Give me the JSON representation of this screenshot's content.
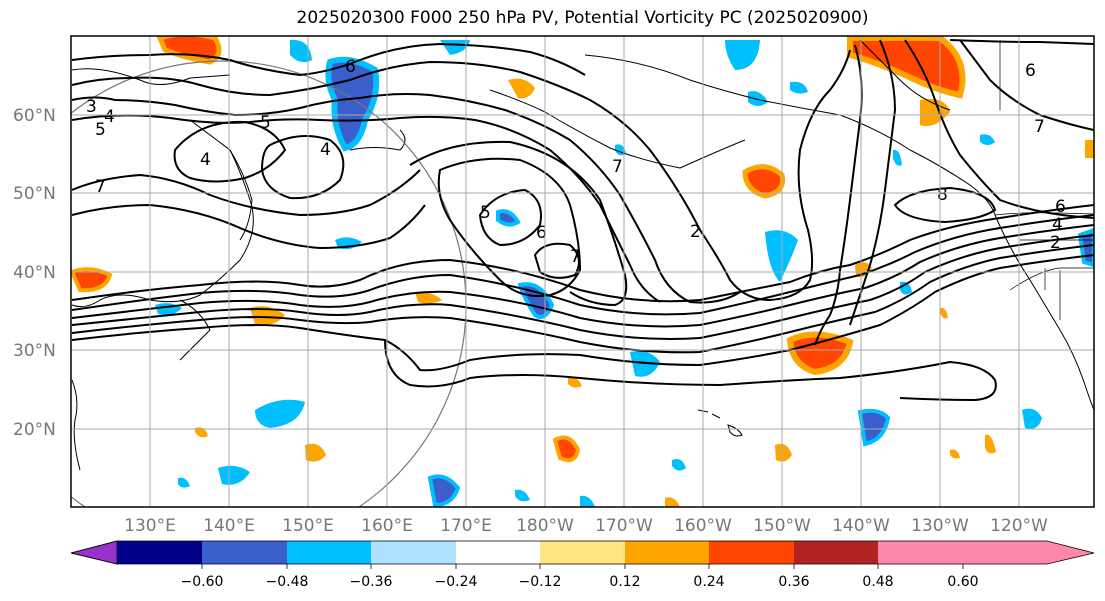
{
  "title": "2025020300 F000 250 hPa PV, Potential Vorticity PC (2025020900)",
  "map": {
    "lat_labels": [
      "60°N",
      "50°N",
      "40°N",
      "30°N",
      "20°N"
    ],
    "lon_labels": [
      "130°E",
      "140°E",
      "150°E",
      "160°E",
      "170°E",
      "180°W",
      "170°W",
      "160°W",
      "150°W",
      "140°W",
      "130°W",
      "120°W"
    ],
    "contour_labels": [
      "3",
      "4",
      "5",
      "7",
      "5",
      "4",
      "4",
      "5",
      "6",
      "7",
      "2",
      "6",
      "8",
      "7",
      "6",
      "4",
      "2",
      "6",
      "7"
    ]
  },
  "colorbar": {
    "tick_labels": [
      "−0.60",
      "−0.48",
      "−0.36",
      "−0.24",
      "−0.12",
      "0.12",
      "0.24",
      "0.36",
      "0.48",
      "0.60"
    ],
    "colors": [
      "#9932cc",
      "#00008b",
      "#3a5fcd",
      "#00bfff",
      "#b0e2ff",
      "#ffffff",
      "#ffe47f",
      "#ffa500",
      "#ff4500",
      "#b22222",
      "#ff88aa"
    ]
  }
}
